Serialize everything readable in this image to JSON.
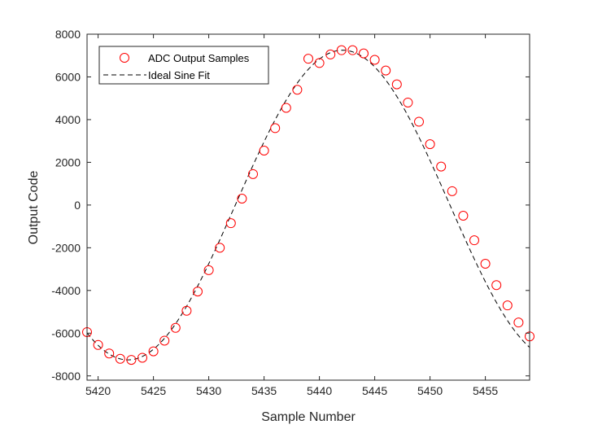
{
  "chart_data": {
    "type": "scatter",
    "xlabel": "Sample Number",
    "ylabel": "Output Code",
    "xlim": [
      5419,
      5459
    ],
    "ylim": [
      -8200,
      8000
    ],
    "xticks": [
      5420,
      5425,
      5430,
      5435,
      5440,
      5445,
      5450,
      5455
    ],
    "yticks": [
      -8000,
      -6000,
      -4000,
      -2000,
      0,
      2000,
      4000,
      6000,
      8000
    ],
    "xtick_labels": [
      "5420",
      "5425",
      "5430",
      "5435",
      "5440",
      "5445",
      "5450",
      "5455"
    ],
    "ytick_labels": [
      "-8000",
      "-6000",
      "-4000",
      "-2000",
      "0",
      "2000",
      "4000",
      "6000",
      "8000"
    ],
    "grid": false,
    "legend_placement": "top-left",
    "series": [
      {
        "name": "ADC Output Samples",
        "kind": "markers",
        "marker": "circle-open",
        "color": "#ff0000",
        "x": [
          5419,
          5420,
          5421,
          5422,
          5423,
          5424,
          5425,
          5426,
          5427,
          5428,
          5429,
          5430,
          5431,
          5432,
          5433,
          5434,
          5435,
          5436,
          5437,
          5438,
          5439,
          5440,
          5441,
          5442,
          5443,
          5444,
          5445,
          5446,
          5447,
          5448,
          5449,
          5450,
          5451,
          5452,
          5453,
          5454,
          5455,
          5456,
          5457,
          5458,
          5459
        ],
        "y": [
          -5950,
          -6550,
          -6950,
          -7200,
          -7250,
          -7150,
          -6850,
          -6350,
          -5750,
          -4950,
          -4050,
          -3050,
          -2000,
          -850,
          300,
          1450,
          2550,
          3600,
          4550,
          5400,
          6850,
          6650,
          7050,
          7250,
          7250,
          7100,
          6800,
          6300,
          5650,
          4800,
          3900,
          2850,
          1800,
          650,
          -500,
          -1650,
          -2750,
          -3750,
          -4700,
          -5500,
          -6150
        ]
      },
      {
        "name": "Ideal Sine Fit",
        "kind": "line",
        "style": "dashed",
        "color": "#000000",
        "amplitude": 7250,
        "offset": 0,
        "trough_x": 5422.7,
        "period": 38.8
      }
    ]
  }
}
